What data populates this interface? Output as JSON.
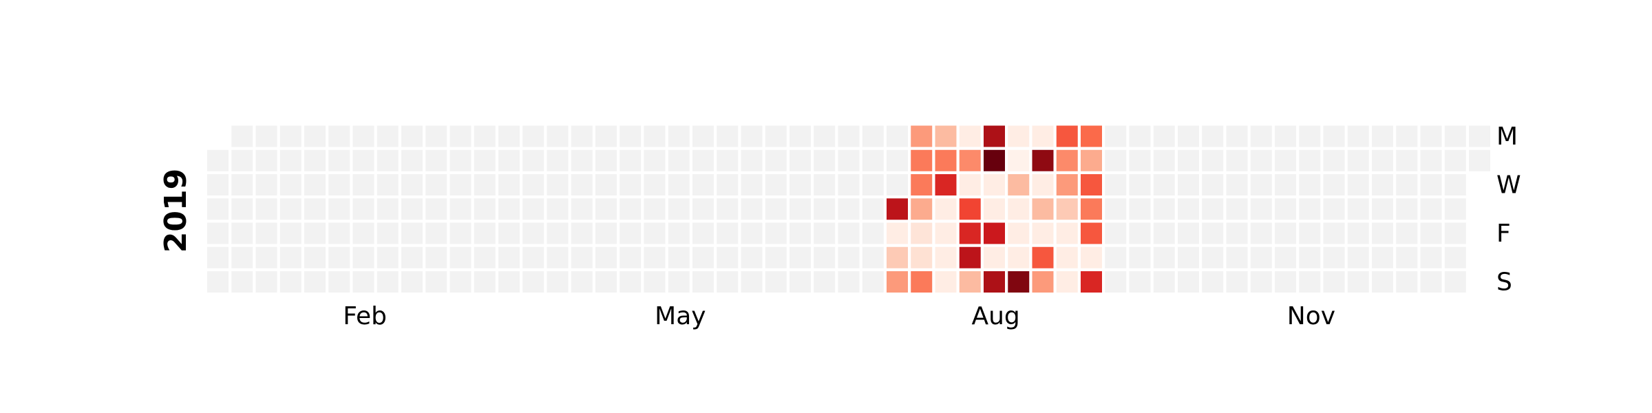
{
  "chart_data": {
    "type": "heatmap",
    "year": "2019",
    "month_labels": [
      {
        "label": "Feb",
        "week": 6.5
      },
      {
        "label": "May",
        "week": 19.5
      },
      {
        "label": "Aug",
        "week": 32.5
      },
      {
        "label": "Nov",
        "week": 45.5
      }
    ],
    "day_labels": [
      {
        "label": "M",
        "day": 0
      },
      {
        "label": "W",
        "day": 2
      },
      {
        "label": "F",
        "day": 4
      },
      {
        "label": "S",
        "day": 6
      }
    ],
    "weeks": 53,
    "first_weekday": 1,
    "last_weekday": 1,
    "empty_color": "#f2f2f2",
    "colormap": "Reds",
    "value_range": [
      0,
      1
    ],
    "active_values": {
      "28": [
        null,
        null,
        null,
        0.8,
        0.05,
        0.2,
        0.35
      ],
      "29": [
        0.35,
        0.45,
        0.45,
        0.3,
        0.1,
        0.12,
        0.45
      ],
      "30": [
        0.25,
        0.45,
        0.7,
        0.05,
        0.05,
        0.05,
        0.05
      ],
      "31": [
        0.05,
        0.4,
        0.05,
        0.6,
        0.7,
        0.8,
        0.25
      ],
      "32": [
        0.85,
        1.0,
        0.05,
        0.05,
        0.75,
        0.05,
        0.85
      ],
      "33": [
        0.05,
        0.02,
        0.25,
        0.05,
        0.05,
        0.05,
        0.95
      ],
      "34": [
        0.05,
        0.92,
        0.05,
        0.25,
        0.05,
        0.55,
        0.35
      ],
      "35": [
        0.55,
        0.4,
        0.35,
        0.2,
        0.05,
        0.05,
        0.05
      ],
      "36": [
        0.5,
        0.3,
        0.55,
        0.45,
        0.55,
        0.05,
        0.7
      ]
    }
  }
}
